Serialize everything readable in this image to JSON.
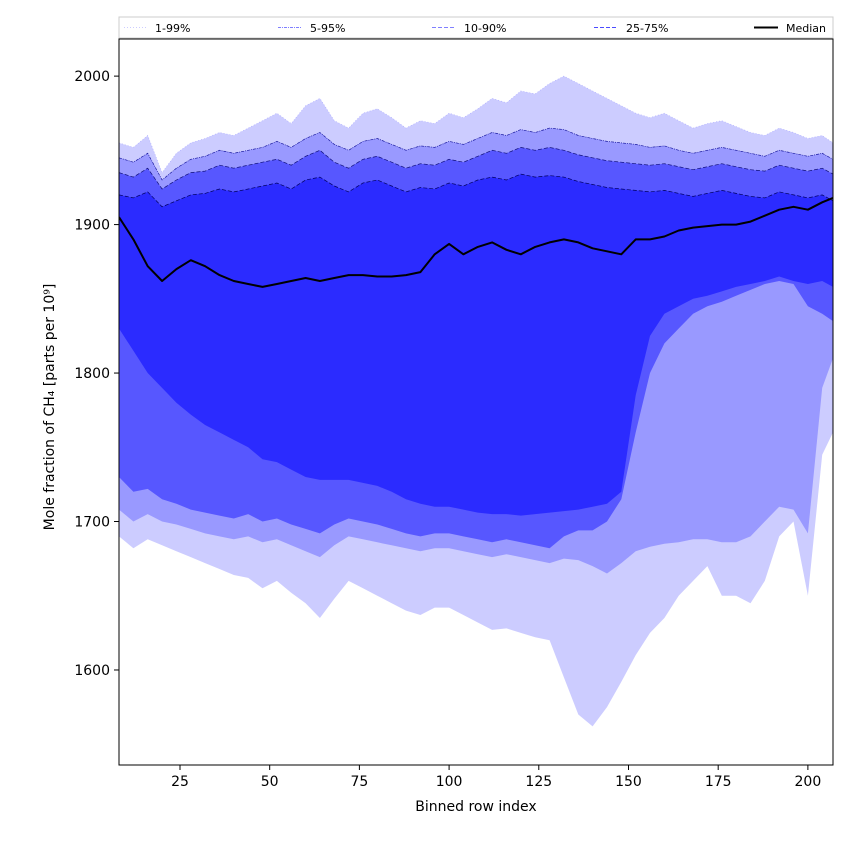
{
  "chart_data": {
    "type": "area",
    "title": "",
    "xlabel": "Binned row index",
    "ylabel": "Mole fraction of CH₄ [parts per 10⁹]",
    "xlim": [
      8,
      207
    ],
    "ylim": [
      1536,
      2025
    ],
    "xticks": [
      25,
      50,
      75,
      100,
      125,
      150,
      175,
      200
    ],
    "yticks": [
      1600,
      1700,
      1800,
      1900,
      2000
    ],
    "grid": false,
    "legend_position": "top",
    "legend": [
      {
        "label": "1-99%",
        "style": "dotted",
        "color": "#ccccff"
      },
      {
        "label": "5-95%",
        "style": "dashdot",
        "color": "#7f7fff"
      },
      {
        "label": "10-90%",
        "style": "dashed",
        "color": "#8080ff"
      },
      {
        "label": "25-75%",
        "style": "dashed",
        "color": "#4b4bff"
      },
      {
        "label": "Median",
        "style": "solid",
        "color": "#000000"
      }
    ],
    "band_colors": [
      "#ccccff",
      "#9999ff",
      "#5757ff",
      "#2b2bff"
    ],
    "x": [
      8,
      12,
      16,
      20,
      24,
      28,
      32,
      36,
      40,
      44,
      48,
      52,
      56,
      60,
      64,
      68,
      72,
      76,
      80,
      84,
      88,
      92,
      96,
      100,
      104,
      108,
      112,
      116,
      120,
      124,
      128,
      132,
      136,
      140,
      144,
      148,
      152,
      156,
      160,
      164,
      168,
      172,
      176,
      180,
      184,
      188,
      192,
      196,
      200,
      204,
      207
    ],
    "series": [
      {
        "name": "1-99%",
        "lower": [
          1690,
          1682,
          1688,
          1684,
          1680,
          1676,
          1672,
          1668,
          1664,
          1662,
          1655,
          1660,
          1652,
          1645,
          1635,
          1648,
          1660,
          1655,
          1650,
          1645,
          1640,
          1637,
          1642,
          1642,
          1637,
          1632,
          1627,
          1628,
          1625,
          1622,
          1620,
          1595,
          1570,
          1562,
          1575,
          1592,
          1610,
          1625,
          1635,
          1650,
          1660,
          1670,
          1650,
          1650,
          1645,
          1660,
          1690,
          1700,
          1650,
          1745,
          1760
        ],
        "upper": [
          1955,
          1952,
          1960,
          1935,
          1948,
          1955,
          1958,
          1962,
          1960,
          1965,
          1970,
          1975,
          1968,
          1980,
          1985,
          1970,
          1965,
          1975,
          1978,
          1972,
          1965,
          1970,
          1968,
          1975,
          1972,
          1978,
          1985,
          1982,
          1990,
          1988,
          1995,
          2000,
          1995,
          1990,
          1985,
          1980,
          1975,
          1972,
          1975,
          1970,
          1965,
          1968,
          1970,
          1966,
          1962,
          1960,
          1965,
          1962,
          1958,
          1960,
          1955
        ]
      },
      {
        "name": "5-95%",
        "lower": [
          1708,
          1700,
          1705,
          1700,
          1698,
          1695,
          1692,
          1690,
          1688,
          1690,
          1686,
          1688,
          1684,
          1680,
          1676,
          1684,
          1690,
          1688,
          1686,
          1684,
          1682,
          1680,
          1682,
          1682,
          1680,
          1678,
          1676,
          1678,
          1676,
          1674,
          1672,
          1675,
          1674,
          1670,
          1665,
          1672,
          1680,
          1683,
          1685,
          1686,
          1688,
          1688,
          1686,
          1686,
          1690,
          1700,
          1710,
          1708,
          1692,
          1790,
          1810
        ],
        "upper": [
          1945,
          1942,
          1948,
          1930,
          1938,
          1944,
          1946,
          1950,
          1948,
          1950,
          1952,
          1956,
          1952,
          1958,
          1962,
          1954,
          1950,
          1956,
          1958,
          1954,
          1950,
          1953,
          1952,
          1956,
          1954,
          1958,
          1962,
          1960,
          1964,
          1962,
          1965,
          1964,
          1960,
          1958,
          1956,
          1955,
          1954,
          1952,
          1953,
          1950,
          1948,
          1950,
          1952,
          1950,
          1948,
          1946,
          1950,
          1948,
          1946,
          1948,
          1944
        ]
      },
      {
        "name": "10-90%",
        "lower": [
          1730,
          1720,
          1722,
          1715,
          1712,
          1708,
          1706,
          1704,
          1702,
          1705,
          1700,
          1702,
          1698,
          1695,
          1692,
          1698,
          1702,
          1700,
          1698,
          1695,
          1692,
          1690,
          1692,
          1692,
          1690,
          1688,
          1686,
          1688,
          1686,
          1684,
          1682,
          1690,
          1694,
          1694,
          1700,
          1715,
          1760,
          1800,
          1820,
          1830,
          1840,
          1845,
          1848,
          1852,
          1856,
          1860,
          1862,
          1860,
          1845,
          1840,
          1835
        ],
        "upper": [
          1935,
          1932,
          1938,
          1924,
          1930,
          1935,
          1936,
          1940,
          1938,
          1940,
          1942,
          1944,
          1940,
          1946,
          1950,
          1942,
          1938,
          1944,
          1946,
          1942,
          1938,
          1941,
          1940,
          1944,
          1942,
          1946,
          1950,
          1948,
          1952,
          1950,
          1952,
          1950,
          1947,
          1945,
          1943,
          1942,
          1941,
          1940,
          1941,
          1939,
          1937,
          1939,
          1941,
          1939,
          1937,
          1936,
          1940,
          1938,
          1936,
          1938,
          1934
        ]
      },
      {
        "name": "25-75%",
        "lower": [
          1830,
          1815,
          1800,
          1790,
          1780,
          1772,
          1765,
          1760,
          1755,
          1750,
          1742,
          1740,
          1735,
          1730,
          1728,
          1728,
          1728,
          1726,
          1724,
          1720,
          1715,
          1712,
          1710,
          1710,
          1708,
          1706,
          1705,
          1705,
          1704,
          1705,
          1706,
          1707,
          1708,
          1710,
          1712,
          1720,
          1785,
          1825,
          1840,
          1845,
          1850,
          1852,
          1855,
          1858,
          1860,
          1862,
          1865,
          1862,
          1860,
          1862,
          1858
        ],
        "upper": [
          1920,
          1918,
          1922,
          1912,
          1916,
          1920,
          1921,
          1924,
          1922,
          1924,
          1926,
          1928,
          1924,
          1930,
          1932,
          1926,
          1922,
          1928,
          1930,
          1926,
          1922,
          1925,
          1924,
          1928,
          1926,
          1930,
          1932,
          1930,
          1934,
          1932,
          1933,
          1932,
          1929,
          1927,
          1925,
          1924,
          1923,
          1922,
          1923,
          1921,
          1919,
          1921,
          1923,
          1921,
          1919,
          1918,
          1922,
          1920,
          1918,
          1920,
          1916
        ]
      },
      {
        "name": "Median",
        "values": [
          1905,
          1890,
          1872,
          1862,
          1870,
          1876,
          1872,
          1866,
          1862,
          1860,
          1858,
          1860,
          1862,
          1864,
          1862,
          1864,
          1866,
          1866,
          1865,
          1865,
          1866,
          1868,
          1880,
          1887,
          1880,
          1885,
          1888,
          1883,
          1880,
          1885,
          1888,
          1890,
          1888,
          1884,
          1882,
          1880,
          1890,
          1890,
          1892,
          1896,
          1898,
          1899,
          1900,
          1900,
          1902,
          1906,
          1910,
          1912,
          1910,
          1915,
          1918
        ]
      }
    ]
  }
}
